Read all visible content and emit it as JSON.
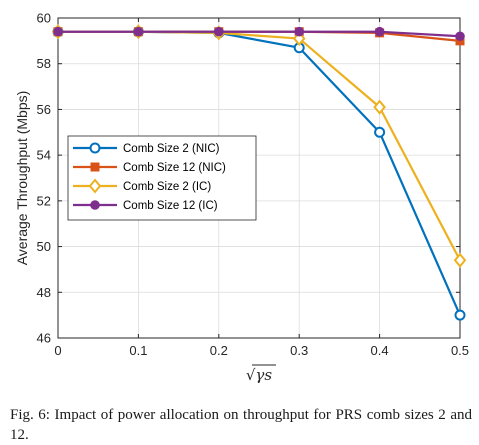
{
  "chart_data": {
    "type": "line",
    "title": "",
    "xlabel": "√γs",
    "ylabel": "Average Throughput (Mbps)",
    "x": [
      0,
      0.1,
      0.2,
      0.3,
      0.4,
      0.5
    ],
    "xlim": [
      0,
      0.5
    ],
    "ylim": [
      46,
      60
    ],
    "xticks": [
      "0",
      "0.1",
      "0.2",
      "0.3",
      "0.4",
      "0.5"
    ],
    "yticks": [
      "46",
      "48",
      "50",
      "52",
      "54",
      "56",
      "58",
      "60"
    ],
    "grid": true,
    "legend_position": "center-left",
    "series": [
      {
        "name": "Comb Size 2 (NIC)",
        "color": "#0072BD",
        "marker": "circle-open",
        "values": [
          59.4,
          59.4,
          59.35,
          58.7,
          55.0,
          47.0
        ]
      },
      {
        "name": "Comb Size 12 (NIC)",
        "color": "#D95319",
        "marker": "square",
        "values": [
          59.4,
          59.4,
          59.4,
          59.4,
          59.35,
          59.0
        ]
      },
      {
        "name": "Comb Size 2 (IC)",
        "color": "#EDB120",
        "marker": "diamond-open",
        "values": [
          59.4,
          59.4,
          59.35,
          59.1,
          56.1,
          49.4
        ]
      },
      {
        "name": "Comb Size 12 (IC)",
        "color": "#7E2F8E",
        "marker": "circle-filled",
        "values": [
          59.4,
          59.4,
          59.4,
          59.4,
          59.4,
          59.2
        ]
      }
    ]
  },
  "caption": "Fig. 6: Impact of power allocation on throughput for PRS comb sizes 2 and 12."
}
